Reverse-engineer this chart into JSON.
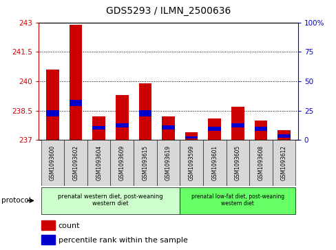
{
  "title": "GDS5293 / ILMN_2500636",
  "samples": [
    "GSM1093600",
    "GSM1093602",
    "GSM1093604",
    "GSM1093609",
    "GSM1093615",
    "GSM1093619",
    "GSM1093599",
    "GSM1093601",
    "GSM1093605",
    "GSM1093608",
    "GSM1093612"
  ],
  "count_values": [
    240.6,
    242.9,
    238.2,
    239.3,
    239.9,
    238.2,
    237.4,
    238.1,
    238.7,
    238.0,
    237.5
  ],
  "percentile_tops": [
    238.52,
    239.05,
    237.72,
    237.85,
    238.52,
    237.75,
    237.18,
    237.68,
    237.85,
    237.68,
    237.28
  ],
  "percentile_bottoms": [
    238.22,
    238.75,
    237.52,
    237.65,
    238.22,
    237.55,
    237.08,
    237.48,
    237.65,
    237.48,
    237.12
  ],
  "y_min": 237,
  "y_max": 243,
  "y_ticks": [
    237,
    238.5,
    240,
    241.5,
    243
  ],
  "right_y_ticks": [
    0,
    25,
    50,
    75,
    100
  ],
  "right_y_labels": [
    "0",
    "25",
    "50",
    "75",
    "100%"
  ],
  "bar_color": "#cc0000",
  "blue_color": "#0000cc",
  "group1_label": "prenatal western diet, post-weaning\nwestern diet",
  "group2_label": "prenatal low-fat diet, post-weaning\nwestern diet",
  "group1_n": 6,
  "group2_n": 5,
  "group1_color": "#ccffcc",
  "group2_color": "#66ff66",
  "protocol_label": "protocol",
  "legend_count": "count",
  "legend_percentile": "percentile rank within the sample",
  "left_axis_color": "#cc0000",
  "right_axis_color": "#0000cc",
  "tick_label_bg": "#d8d8d8"
}
